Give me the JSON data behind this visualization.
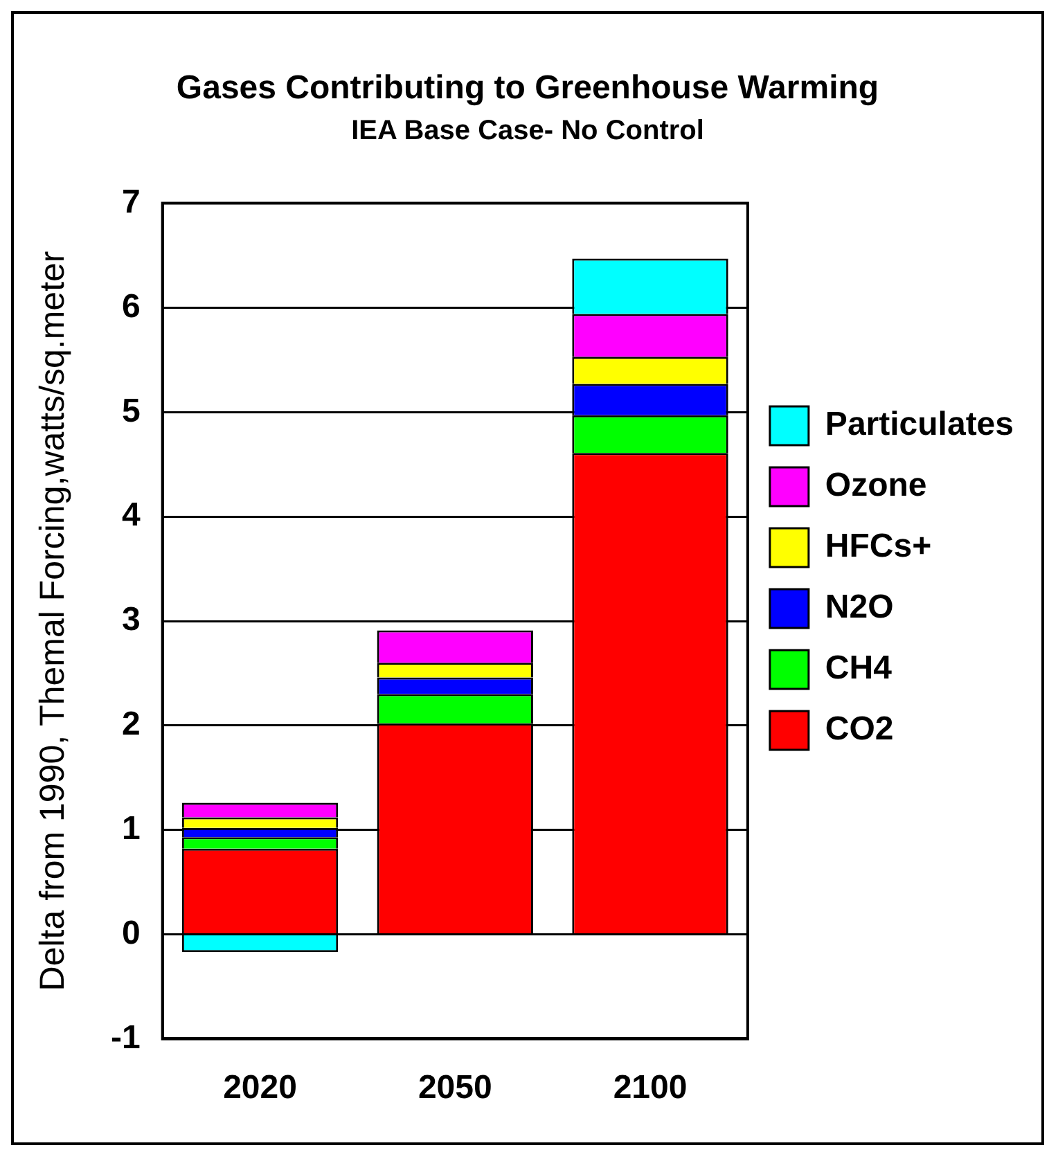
{
  "chart_data": {
    "type": "bar",
    "title": "Gases Contributing to Greenhouse Warming",
    "subtitle": "IEA Base Case- No Control",
    "ylabel": "Delta from 1990, Themal Forcing,watts/sq.meter",
    "categories": [
      "2020",
      "2050",
      "2100"
    ],
    "stacked": true,
    "series": [
      {
        "name": "CO2",
        "color": "#ff0000",
        "values": [
          0.82,
          2.02,
          4.61
        ]
      },
      {
        "name": "CH4",
        "color": "#00ff00",
        "values": [
          0.11,
          0.28,
          0.36
        ]
      },
      {
        "name": "N2O",
        "color": "#0000ff",
        "values": [
          0.09,
          0.16,
          0.3
        ]
      },
      {
        "name": "HFCs+",
        "color": "#ffff00",
        "values": [
          0.1,
          0.14,
          0.26
        ]
      },
      {
        "name": "Ozone",
        "color": "#ff00ff",
        "values": [
          0.14,
          0.31,
          0.41
        ]
      },
      {
        "name": "Particulates",
        "color": "#00ffff",
        "values": [
          -0.17,
          null,
          0.53
        ]
      }
    ],
    "ylim": [
      -1,
      7
    ],
    "yticks": [
      -1,
      0,
      1,
      2,
      3,
      4,
      5,
      6,
      7
    ],
    "grid": "y",
    "legend": "right"
  }
}
